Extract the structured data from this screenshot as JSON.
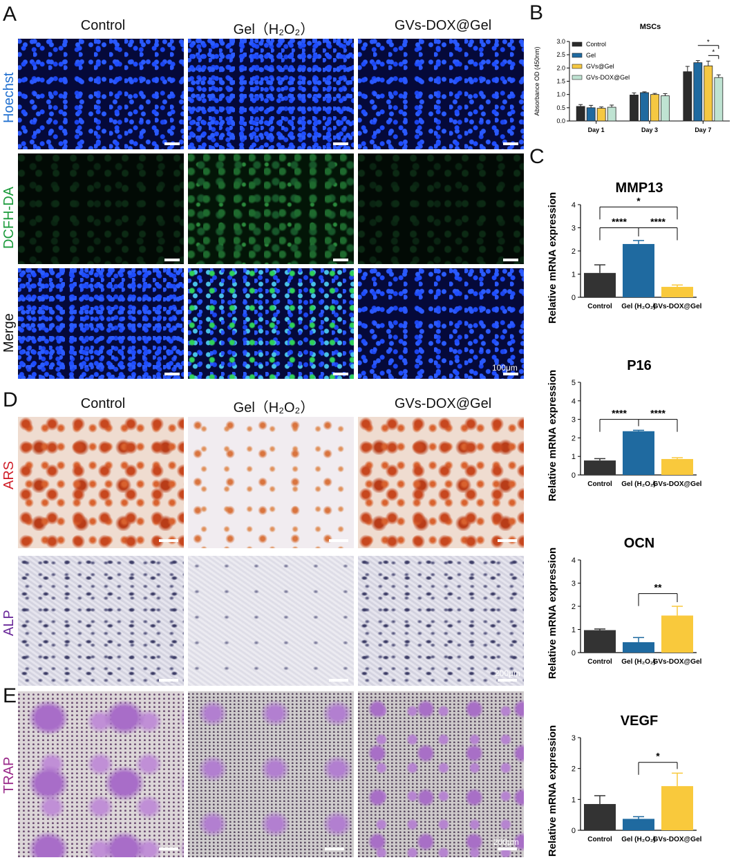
{
  "panels": {
    "A": {
      "letter": "A",
      "columns": [
        "Control",
        "Gel（H₂O₂）",
        "GVs-DOX@Gel"
      ],
      "rows": [
        {
          "label": "Hoechst",
          "color": "#1f6fd0"
        },
        {
          "label": "DCFH-DA",
          "color": "#1a9a3a"
        },
        {
          "label": "Merge",
          "color": "#111111"
        }
      ],
      "scale_label": "100μm"
    },
    "D": {
      "letter": "D",
      "columns": [
        "Control",
        "Gel（H₂O₂）",
        "GVs-DOX@Gel"
      ],
      "rows": [
        {
          "label": "ARS",
          "color": "#d0202a"
        },
        {
          "label": "ALP",
          "color": "#6a2a9a"
        }
      ],
      "scale_label": "200μm"
    },
    "E": {
      "letter": "E",
      "rows": [
        {
          "label": "TRAP",
          "color": "#9a2a8a"
        }
      ],
      "scale_label": "200μm"
    },
    "B": {
      "letter": "B"
    },
    "C": {
      "letter": "C"
    }
  },
  "chart_data": [
    {
      "id": "B",
      "type": "bar",
      "title": "MSCs",
      "ylabel": "Absorbance OD (450nm)",
      "ylim": [
        0,
        3.0
      ],
      "yticks": [
        0.0,
        0.5,
        1.0,
        1.5,
        2.0,
        2.5,
        3.0
      ],
      "categories": [
        "Day 1",
        "Day 3",
        "Day 7"
      ],
      "legend_position": "top-left",
      "series": [
        {
          "name": "Control",
          "color": "#2b2b2b",
          "values": [
            0.55,
            0.98,
            1.86
          ],
          "errors": [
            0.07,
            0.08,
            0.2
          ]
        },
        {
          "name": "Gel",
          "color": "#1f6aa0",
          "values": [
            0.5,
            1.07,
            2.2
          ],
          "errors": [
            0.09,
            0.03,
            0.08
          ]
        },
        {
          "name": "GVs@Gel",
          "color": "#f5c842",
          "values": [
            0.48,
            1.0,
            2.08
          ],
          "errors": [
            0.05,
            0.04,
            0.18
          ]
        },
        {
          "name": "GVs-DOX@Gel",
          "color": "#bfe3d2",
          "values": [
            0.52,
            0.95,
            1.64
          ],
          "errors": [
            0.08,
            0.08,
            0.1
          ]
        }
      ],
      "significance": [
        {
          "from": 1,
          "to": 3,
          "label": "*"
        },
        {
          "from": 2,
          "to": 3,
          "label": "*"
        }
      ]
    },
    {
      "id": "MMP13",
      "type": "bar",
      "title": "MMP13",
      "ylabel": "Relative mRNA expression",
      "ylim": [
        0,
        4
      ],
      "yticks": [
        0,
        1,
        2,
        3,
        4
      ],
      "categories": [
        "Control",
        "Gel (H₂O₂)",
        "GVs-DOX@Gel"
      ],
      "values": [
        1.05,
        2.3,
        0.45
      ],
      "errors": [
        0.35,
        0.15,
        0.08
      ],
      "colors": [
        "#333333",
        "#1f6aa0",
        "#f9c93c"
      ],
      "significance": [
        {
          "from": 0,
          "to": 1,
          "label": "****",
          "level": 3.0
        },
        {
          "from": 1,
          "to": 2,
          "label": "****",
          "level": 3.0
        },
        {
          "from": 0,
          "to": 2,
          "label": "*",
          "level": 3.9
        }
      ]
    },
    {
      "id": "P16",
      "type": "bar",
      "title": "P16",
      "ylabel": "Relative mRNA expression",
      "ylim": [
        0,
        5
      ],
      "yticks": [
        0,
        1,
        2,
        3,
        4,
        5
      ],
      "categories": [
        "Control",
        "Gel (H₂O₂)",
        "GVs-DOX@Gel"
      ],
      "values": [
        0.78,
        2.36,
        0.86
      ],
      "errors": [
        0.1,
        0.05,
        0.07
      ],
      "colors": [
        "#333333",
        "#1f6aa0",
        "#f9c93c"
      ],
      "significance": [
        {
          "from": 0,
          "to": 1,
          "label": "****",
          "level": 3.0
        },
        {
          "from": 1,
          "to": 2,
          "label": "****",
          "level": 3.0
        }
      ]
    },
    {
      "id": "OCN",
      "type": "bar",
      "title": "OCN",
      "ylabel": "Relative mRNA expression",
      "ylim": [
        0,
        4
      ],
      "yticks": [
        0,
        1,
        2,
        3,
        4
      ],
      "categories": [
        "Control",
        "Gel (H₂O₂)",
        "GVs-DOX@Gel"
      ],
      "values": [
        0.97,
        0.45,
        1.6
      ],
      "errors": [
        0.05,
        0.2,
        0.4
      ],
      "colors": [
        "#333333",
        "#1f6aa0",
        "#f9c93c"
      ],
      "significance": [
        {
          "from": 1,
          "to": 2,
          "label": "**",
          "level": 2.55
        }
      ]
    },
    {
      "id": "VEGF",
      "type": "bar",
      "title": "VEGF",
      "ylabel": "Relative mRNA expression",
      "ylim": [
        0,
        3
      ],
      "yticks": [
        0,
        1,
        2,
        3
      ],
      "categories": [
        "Control",
        "Gel (H₂O₂)",
        "GVs-DOX@Gel"
      ],
      "values": [
        0.85,
        0.37,
        1.43
      ],
      "errors": [
        0.27,
        0.07,
        0.42
      ],
      "colors": [
        "#333333",
        "#1f6aa0",
        "#f9c93c"
      ],
      "significance": [
        {
          "from": 1,
          "to": 2,
          "label": "*",
          "level": 2.2
        }
      ]
    }
  ]
}
